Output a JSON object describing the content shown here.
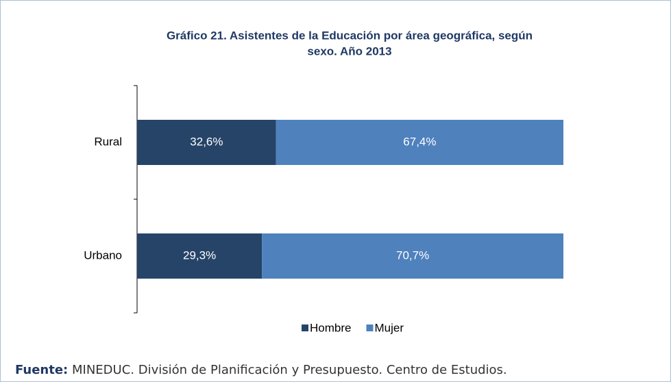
{
  "chart_data": {
    "type": "stacked_barh",
    "title": [
      "Gráfico 21. Asistentes de la Educación por área geográfica, según",
      "sexo. Año 2013"
    ],
    "categories": [
      "Rural",
      "Urbano"
    ],
    "series": [
      {
        "name": "Hombre",
        "color": "#264468",
        "values": [
          32.6,
          29.3
        ],
        "value_labels": [
          "32,6%",
          "29,3%"
        ]
      },
      {
        "name": "Mujer",
        "color": "#4f81bd",
        "values": [
          67.4,
          70.7
        ],
        "value_labels": [
          "67,4%",
          "70,7%"
        ]
      }
    ],
    "xlim": [
      0,
      100
    ],
    "legend": "bottom",
    "source_label": "Fuente:",
    "source": "MINEDUC. División de Planificación y Presupuesto. Centro de Estudios."
  }
}
